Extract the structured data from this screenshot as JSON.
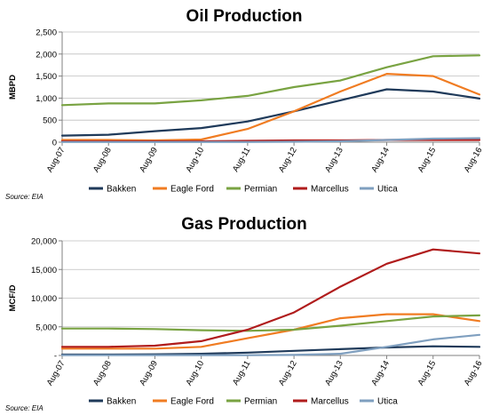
{
  "chart_data": [
    {
      "type": "line",
      "title": "Oil Production",
      "xlabel": "",
      "ylabel": "MBPD",
      "ylim": [
        0,
        2500
      ],
      "yticks": [
        "0",
        "500",
        "1,000",
        "1,500",
        "2,000",
        "2,500"
      ],
      "x": [
        "Aug-07",
        "Aug-08",
        "Aug-09",
        "Aug-10",
        "Aug-11",
        "Aug-12",
        "Aug-13",
        "Aug-14",
        "Aug-15",
        "Aug-16"
      ],
      "grid": true,
      "legend": "bottom",
      "source": "Source: EIA",
      "series": [
        {
          "name": "Bakken",
          "color": "#1f3a5a",
          "values": [
            150,
            170,
            250,
            320,
            470,
            700,
            950,
            1200,
            1150,
            990
          ]
        },
        {
          "name": "Eagle Ford",
          "color": "#f07c22",
          "values": [
            50,
            50,
            40,
            60,
            300,
            700,
            1150,
            1550,
            1500,
            1080
          ]
        },
        {
          "name": "Permian",
          "color": "#79a342",
          "values": [
            840,
            880,
            880,
            950,
            1050,
            1250,
            1400,
            1700,
            1950,
            1970
          ]
        },
        {
          "name": "Marcellus",
          "color": "#b01c1c",
          "values": [
            20,
            20,
            20,
            20,
            30,
            40,
            40,
            50,
            50,
            50
          ]
        },
        {
          "name": "Utica",
          "color": "#7f9fbf",
          "values": [
            5,
            5,
            5,
            5,
            5,
            10,
            20,
            50,
            80,
            90
          ]
        }
      ]
    },
    {
      "type": "line",
      "title": "Gas Production",
      "xlabel": "",
      "ylabel": "MCF/D",
      "ylim": [
        0,
        20000
      ],
      "yticks": [
        "-",
        "5,000",
        "10,000",
        "15,000",
        "20,000"
      ],
      "x": [
        "Aug-07",
        "Aug-08",
        "Aug-09",
        "Aug-10",
        "Aug-11",
        "Aug-12",
        "Aug-13",
        "Aug-14",
        "Aug-15",
        "Aug-16"
      ],
      "grid": true,
      "legend": "bottom",
      "source": "Source: EIA",
      "series": [
        {
          "name": "Bakken",
          "color": "#1f3a5a",
          "values": [
            150,
            150,
            200,
            300,
            500,
            800,
            1100,
            1400,
            1600,
            1500
          ]
        },
        {
          "name": "Eagle Ford",
          "color": "#f07c22",
          "values": [
            1200,
            1200,
            1200,
            1500,
            3000,
            4500,
            6500,
            7200,
            7200,
            6000
          ]
        },
        {
          "name": "Permian",
          "color": "#79a342",
          "values": [
            4700,
            4700,
            4600,
            4400,
            4300,
            4500,
            5200,
            6000,
            6800,
            7000
          ]
        },
        {
          "name": "Marcellus",
          "color": "#b01c1c",
          "values": [
            1500,
            1500,
            1700,
            2500,
            4500,
            7500,
            12000,
            16000,
            18500,
            17800
          ]
        },
        {
          "name": "Utica",
          "color": "#7f9fbf",
          "values": [
            50,
            50,
            50,
            50,
            50,
            100,
            300,
            1500,
            2800,
            3600
          ]
        }
      ]
    }
  ]
}
